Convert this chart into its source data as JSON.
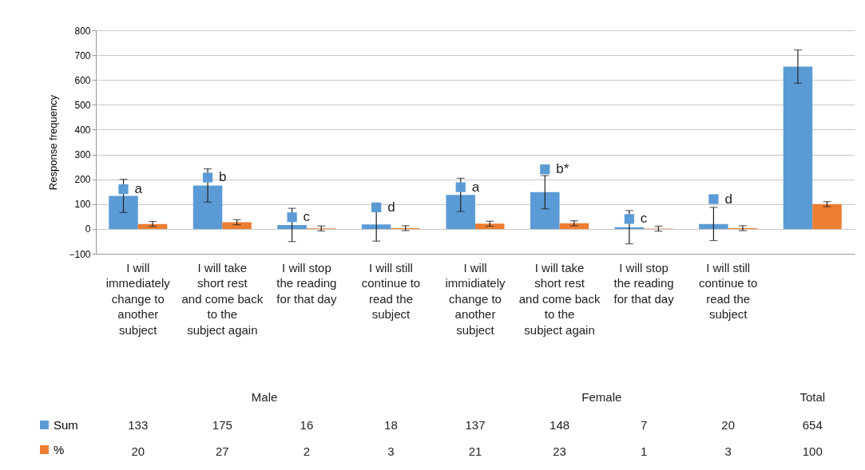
{
  "chart_data": {
    "type": "bar",
    "ylabel": "Response frequency",
    "categories": [
      "I will immediately change to another subject",
      "I will take short rest and come back to the subject again",
      "I will stop the reading for that day",
      "I will still continue to read the subject",
      "I will immidiately change to another subject",
      "I will take short rest and come back to the subject again",
      "I will stop the reading for that day",
      "I will still continue to read the subject",
      null
    ],
    "series": [
      {
        "name": "Sum",
        "color": "#5b9bd5",
        "values": [
          133,
          175,
          16,
          18,
          137,
          148,
          7,
          20,
          654
        ],
        "errors": [
          67,
          67,
          67,
          67,
          67,
          67,
          67,
          67,
          67
        ],
        "value_labels": [
          "133",
          "175",
          "16",
          "18",
          "137",
          "148",
          "7",
          "20",
          "654"
        ]
      },
      {
        "name": "%",
        "color": "#ed7d31",
        "values": [
          20,
          27,
          2,
          3,
          21,
          23,
          1,
          3,
          100
        ],
        "errors": [
          10,
          10,
          10,
          10,
          10,
          10,
          10,
          10,
          10
        ],
        "value_labels": [
          "20",
          "27",
          "2",
          "3",
          "21",
          "23",
          "1",
          "3",
          "100"
        ]
      },
      {
        "type": "scatter",
        "marker": "square",
        "color": "#5b9bd5",
        "values": [
          160,
          207,
          47,
          87,
          168,
          240,
          40,
          120,
          null
        ],
        "value_labels": [
          "a",
          "b",
          "c",
          "d",
          "a",
          "b*",
          "c",
          "d",
          null
        ]
      }
    ],
    "annotations": [
      "Male",
      "Female",
      "Total"
    ],
    "ylim": [
      -100,
      800
    ],
    "yticks": [
      -100,
      0,
      100,
      200,
      300,
      400,
      500,
      600,
      700,
      800
    ],
    "grid": "y",
    "legend": "bottom left"
  }
}
